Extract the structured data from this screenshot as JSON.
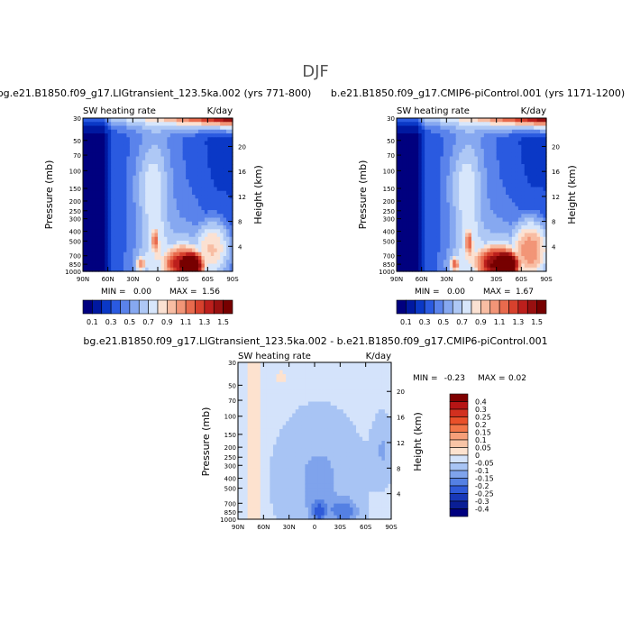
{
  "page_title": "DJF",
  "chart_data": [
    {
      "type": "heatmap",
      "title": "bg.e21.B1850.f09_g17.LIGtransient_123.5ka.002 (yrs 771-800)",
      "subtitle_left": "SW heating rate",
      "subtitle_right": "K/day",
      "ylabel": "Pressure (mb)",
      "y2label": "Height (km)",
      "x_ticks": [
        "90N",
        "60N",
        "30N",
        "0",
        "30S",
        "60S",
        "90S"
      ],
      "y_ticks": [
        "30",
        "50",
        "70",
        "100",
        "150",
        "200",
        "250",
        "300",
        "400",
        "500",
        "700",
        "850",
        "1000"
      ],
      "y2_ticks": [
        "20",
        "16",
        "12",
        "8",
        "4"
      ],
      "ylim": [
        1000,
        30
      ],
      "xlim": [
        "90N",
        "90S"
      ],
      "min_label": "MIN =",
      "min_value": "0.00",
      "max_label": "MAX =",
      "max_value": "1.56",
      "features": [
        {
          "lat": -38,
          "p": 860,
          "value": 1.55
        },
        {
          "lat": -30,
          "p": 850,
          "value": 1.2
        },
        {
          "lat": 3,
          "p": 510,
          "value": 0.95
        },
        {
          "lat": 20,
          "p": 850,
          "value": 0.95
        },
        {
          "lat": -65,
          "p": 600,
          "value": 0.8
        },
        {
          "lat": -80,
          "p": 30,
          "value": 1.5
        }
      ]
    },
    {
      "type": "heatmap",
      "title": "b.e21.B1850.f09_g17.CMIP6-piControl.001 (yrs 1171-1200)",
      "subtitle_left": "SW heating rate",
      "subtitle_right": "K/day",
      "ylabel": "Pressure (mb)",
      "y2label": "Height (km)",
      "x_ticks": [
        "90N",
        "60N",
        "30N",
        "0",
        "30S",
        "60S",
        "90S"
      ],
      "y_ticks": [
        "30",
        "50",
        "70",
        "100",
        "150",
        "200",
        "250",
        "300",
        "400",
        "500",
        "700",
        "850",
        "1000"
      ],
      "y2_ticks": [
        "20",
        "16",
        "12",
        "8",
        "4"
      ],
      "ylim": [
        1000,
        30
      ],
      "xlim": [
        "90N",
        "90S"
      ],
      "min_label": "MIN =",
      "min_value": "0.00",
      "max_label": "MAX =",
      "max_value": "1.67",
      "features": [
        {
          "lat": -40,
          "p": 860,
          "value": 1.65
        },
        {
          "lat": -30,
          "p": 850,
          "value": 1.3
        },
        {
          "lat": 3,
          "p": 530,
          "value": 1.0
        },
        {
          "lat": 20,
          "p": 850,
          "value": 1.0
        },
        {
          "lat": -70,
          "p": 620,
          "value": 0.95
        },
        {
          "lat": -80,
          "p": 30,
          "value": 1.5
        }
      ]
    },
    {
      "type": "heatmap",
      "title": "bg.e21.B1850.f09_g17.LIGtransient_123.5ka.002 - b.e21.B1850.f09_g17.CMIP6-piControl.001",
      "subtitle_left": "SW heating rate",
      "subtitle_right": "K/day",
      "ylabel": "Pressure (mb)",
      "y2label": "Height (km)",
      "x_ticks": [
        "90N",
        "60N",
        "30N",
        "0",
        "30S",
        "60S",
        "90S"
      ],
      "y_ticks": [
        "30",
        "50",
        "70",
        "100",
        "150",
        "200",
        "250",
        "300",
        "400",
        "500",
        "700",
        "850",
        "1000"
      ],
      "y2_ticks": [
        "20",
        "16",
        "12",
        "8",
        "4"
      ],
      "ylim": [
        1000,
        30
      ],
      "xlim": [
        "90N",
        "90S"
      ],
      "min_label": "MIN =",
      "min_value": "-0.23",
      "max_label": "MAX =",
      "max_value": "0.02"
    }
  ],
  "colorbar_abs": {
    "orientation": "horizontal",
    "labels": [
      "0.1",
      "0.3",
      "0.5",
      "0.7",
      "0.9",
      "1.1",
      "1.3",
      "1.5"
    ],
    "colors": [
      "#00007f",
      "#0018a0",
      "#0a38c6",
      "#2a5ae0",
      "#5a83eb",
      "#86a8f0",
      "#aec8f5",
      "#d7e6fb",
      "#fbe1d2",
      "#f8bda3",
      "#f29577",
      "#e86a4d",
      "#d7412d",
      "#bc1f1c",
      "#991010",
      "#770000"
    ]
  },
  "colorbar_diff": {
    "orientation": "vertical",
    "labels": [
      "0.4",
      "0.3",
      "0.25",
      "0.2",
      "0.15",
      "0.1",
      "0.05",
      "0",
      "-0.05",
      "-0.1",
      "-0.15",
      "-0.2",
      "-0.25",
      "-0.3",
      "-0.4"
    ],
    "colors": [
      "#7f0000",
      "#b71515",
      "#d2301f",
      "#e9502a",
      "#f27649",
      "#f69f79",
      "#f8c4a6",
      "#fde2cf",
      "#d4e3fb",
      "#a8c4f4",
      "#7fa3ec",
      "#5480e3",
      "#2f5ad8",
      "#1838b8",
      "#0a1e95",
      "#00007f"
    ]
  }
}
